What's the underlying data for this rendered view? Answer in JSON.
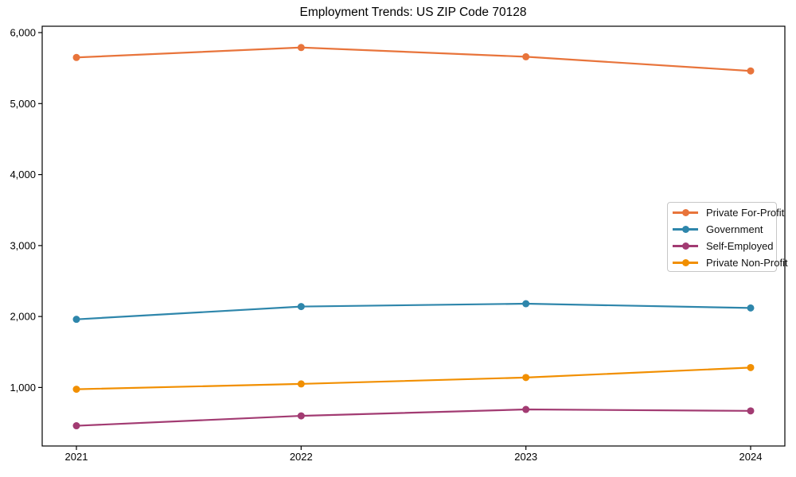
{
  "title": "Employment Trends: US ZIP Code 70128",
  "chart_data": {
    "type": "line",
    "title": "Employment Trends: US ZIP Code 70128",
    "xlabel": "",
    "ylabel": "",
    "categories": [
      "2021",
      "2022",
      "2023",
      "2024"
    ],
    "series": [
      {
        "name": "Private For-Profit",
        "color": "#E8743B",
        "values": [
          5650,
          5790,
          5660,
          5460
        ]
      },
      {
        "name": "Government",
        "color": "#2E86AB",
        "values": [
          1960,
          2140,
          2180,
          2120
        ]
      },
      {
        "name": "Self-Employed",
        "color": "#A23B72",
        "values": [
          460,
          600,
          690,
          670
        ]
      },
      {
        "name": "Private Non-Profit",
        "color": "#F18F01",
        "values": [
          975,
          1050,
          1140,
          1280
        ]
      }
    ],
    "yticks": [
      1000,
      2000,
      3000,
      4000,
      5000,
      6000
    ],
    "ytick_labels": [
      "1,000",
      "2,000",
      "3,000",
      "4,000",
      "5,000",
      "6,000"
    ],
    "ylim": [
      175,
      6090
    ],
    "grid": false,
    "legend_position": "center-right",
    "marker": "circle",
    "frame": true
  }
}
